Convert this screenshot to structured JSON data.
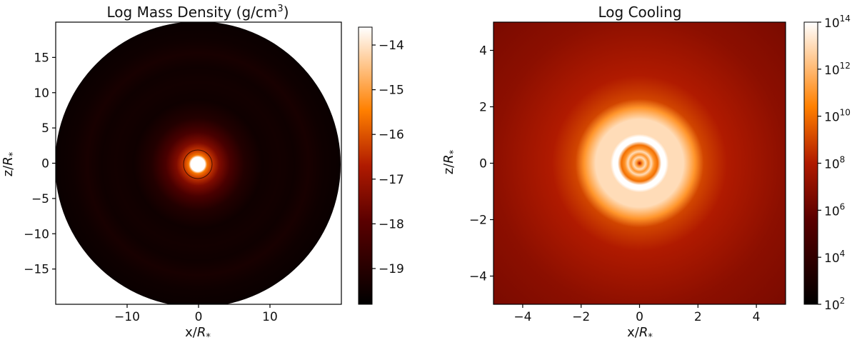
{
  "chart_data": [
    {
      "type": "heatmap",
      "title": "Log Mass Density (g/cm³)",
      "xlabel": "x/R*",
      "ylabel": "z/R*",
      "xlim": [
        -20,
        20
      ],
      "ylim": [
        -20,
        20
      ],
      "xticks": [
        -10,
        0,
        10
      ],
      "xtick_labels": [
        "−10",
        "0",
        "10"
      ],
      "yticks": [
        15,
        10,
        5,
        0,
        -5,
        -10,
        -15
      ],
      "ytick_labels": [
        "15",
        "10",
        "5",
        "0",
        "−5",
        "−10",
        "−15"
      ],
      "colorbar": {
        "colormap": "gist_heat",
        "range": [
          -19.8,
          -13.6
        ],
        "ticks": [
          -14,
          -15,
          -16,
          -17,
          -18,
          -19
        ],
        "tick_labels": [
          "−14",
          "−15",
          "−16",
          "−17",
          "−18",
          "−19"
        ]
      },
      "domain_shape": "disk of radius 20 R*",
      "radial_profile": [
        {
          "r": 0.0,
          "value": -13.6
        },
        {
          "r": 1.0,
          "value": -13.6
        },
        {
          "r": 1.3,
          "value": -15.6
        },
        {
          "r": 2.0,
          "value": -16.4
        },
        {
          "r": 3.0,
          "value": -17.4
        },
        {
          "r": 4.5,
          "value": -18.3
        },
        {
          "r": 6.5,
          "value": -19.1
        },
        {
          "r": 9.0,
          "value": -19.5
        },
        {
          "r": 11.5,
          "value": -19.4
        },
        {
          "r": 13.5,
          "value": -19.5
        },
        {
          "r": 15.5,
          "value": -19.3
        },
        {
          "r": 17.5,
          "value": -19.5
        },
        {
          "r": 20.0,
          "value": -19.6
        }
      ]
    },
    {
      "type": "heatmap",
      "title": "Log Cooling",
      "xlabel": "x/R*",
      "ylabel": "z/R*",
      "xlim": [
        -5,
        5
      ],
      "ylim": [
        -5,
        5
      ],
      "xticks": [
        -4,
        -2,
        0,
        2,
        4
      ],
      "xtick_labels": [
        "−4",
        "−2",
        "0",
        "2",
        "4"
      ],
      "yticks": [
        4,
        2,
        0,
        -2,
        -4
      ],
      "ytick_labels": [
        "4",
        "2",
        "0",
        "−2",
        "−4"
      ],
      "colorbar": {
        "colormap": "gist_heat",
        "scale": "log",
        "range": [
          100,
          100000000000000.0
        ],
        "ticks": [
          100000000000000.0,
          1000000000000.0,
          10000000000.0,
          100000000.0,
          1000000.0,
          10000.0,
          100
        ],
        "tick_bases": [
          "10",
          "10",
          "10",
          "10",
          "10",
          "10",
          "10"
        ],
        "tick_exponents": [
          "14",
          "12",
          "10",
          "8",
          "6",
          "4",
          "2"
        ]
      },
      "radial_profile": [
        {
          "r": 0.0,
          "value": 100000000.0
        },
        {
          "r": 0.1,
          "value": 100000000000.0
        },
        {
          "r": 0.2,
          "value": 10000000000000.0
        },
        {
          "r": 0.3,
          "value": 100000000000.0
        },
        {
          "r": 0.4,
          "value": 10000000000000.0
        },
        {
          "r": 0.5,
          "value": 100000000000.0
        },
        {
          "r": 0.62,
          "value": 10000000000.0
        },
        {
          "r": 0.75,
          "value": 100000000000000.0
        },
        {
          "r": 0.9,
          "value": 100000000000000.0
        },
        {
          "r": 1.0,
          "value": 10000000000000.0
        },
        {
          "r": 1.5,
          "value": 10000000000000.0
        },
        {
          "r": 1.7,
          "value": 1000000000000.0
        },
        {
          "r": 1.9,
          "value": 100000000000.0
        },
        {
          "r": 2.2,
          "value": 1000000000.0
        },
        {
          "r": 3.0,
          "value": 100000000.0
        },
        {
          "r": 5.0,
          "value": 10000000.0
        },
        {
          "r": 7.1,
          "value": 3000000.0
        }
      ]
    }
  ]
}
